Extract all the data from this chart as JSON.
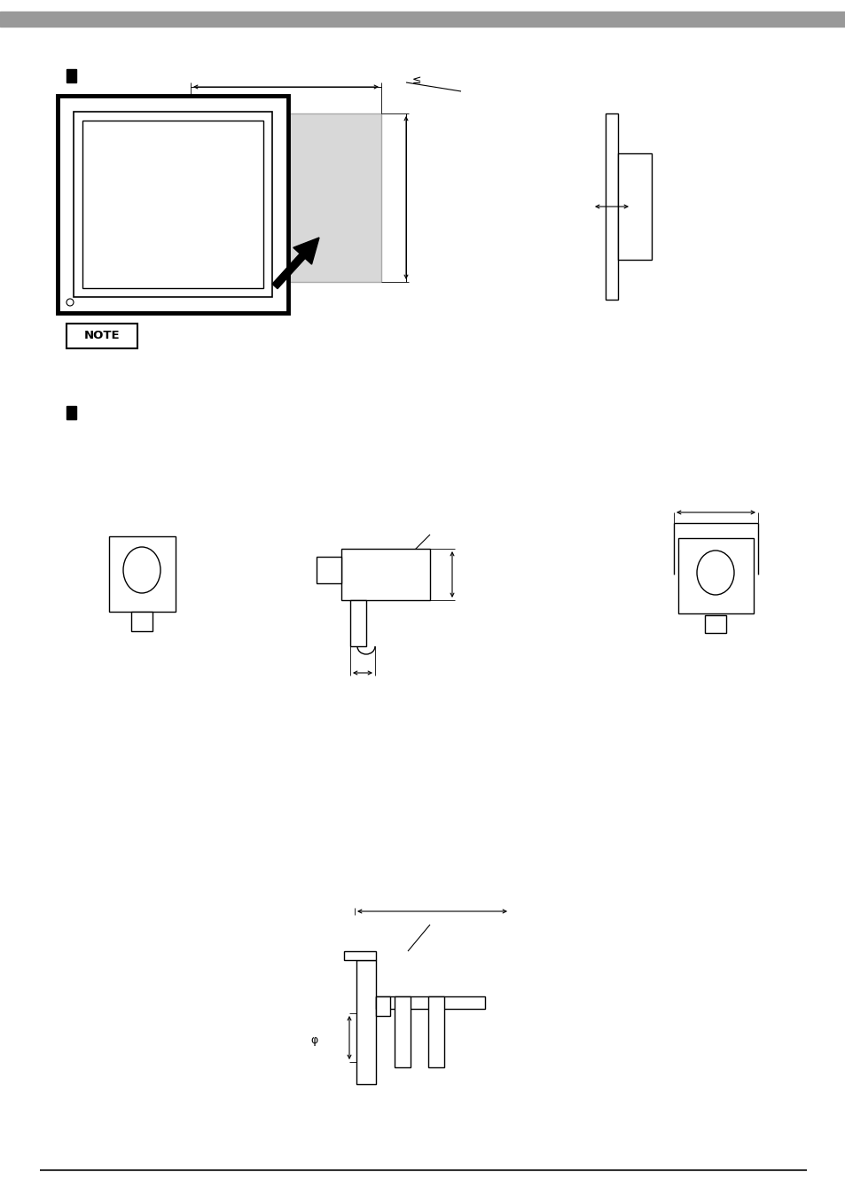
{
  "bg_color": "#ffffff",
  "header_bar_color": "#999999",
  "footer_color": "#333333",
  "note_text": "NOTE"
}
